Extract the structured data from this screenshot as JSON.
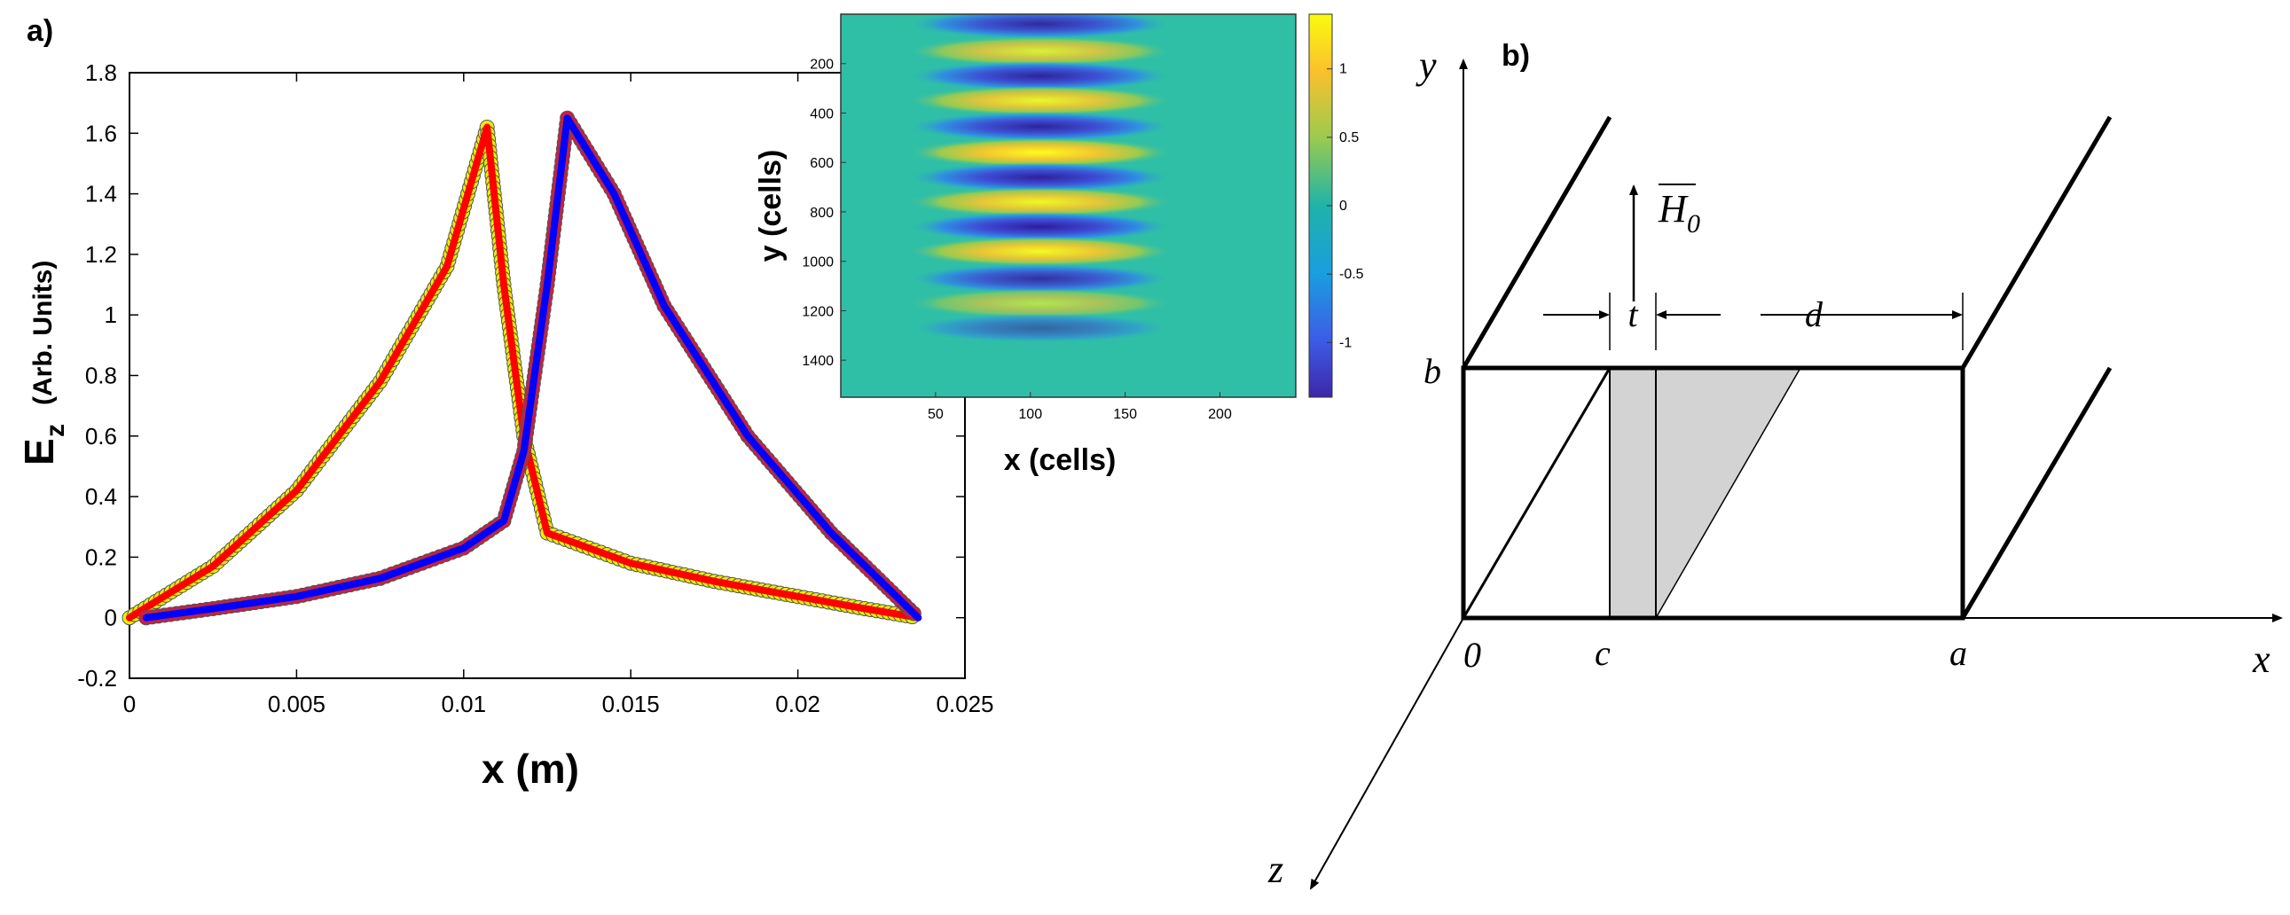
{
  "panel_labels": {
    "a": "a)",
    "b": "b)"
  },
  "chart_data": [
    {
      "type": "line",
      "title": "",
      "xlabel": "x (m)",
      "ylabel_main": "E",
      "ylabel_sub": "z",
      "ylabel_units": "(Arb. Units)",
      "xlim": [
        0,
        0.025
      ],
      "ylim": [
        -0.2,
        1.8
      ],
      "xticks": [
        0,
        0.005,
        0.01,
        0.015,
        0.02,
        0.025
      ],
      "xtick_labels": [
        "0",
        "0.005",
        "0.01",
        "0.015",
        "0.02",
        "0.025"
      ],
      "yticks": [
        -0.2,
        0,
        0.2,
        0.4,
        0.6,
        0.8,
        1,
        1.2,
        1.4,
        1.6,
        1.8
      ],
      "ytick_labels": [
        "-0.2",
        "0",
        "0.2",
        "0.4",
        "0.6",
        "0.8",
        "1",
        "1.2",
        "1.4",
        "1.6",
        "1.8"
      ],
      "grid": false,
      "series": [
        {
          "marker_color": "#e8f000",
          "line_color": "#ff0000",
          "x": [
            0,
            0.0025,
            0.005,
            0.0075,
            0.0095,
            0.0107,
            0.0112,
            0.0118,
            0.0125,
            0.015,
            0.0175,
            0.02,
            0.022,
            0.0236
          ],
          "y": [
            0,
            0.17,
            0.42,
            0.78,
            1.16,
            1.62,
            1.1,
            0.6,
            0.28,
            0.18,
            0.12,
            0.07,
            0.03,
            0
          ]
        },
        {
          "marker_color": "#d61a3c",
          "line_color": "#0000ff",
          "x": [
            0.0005,
            0.0025,
            0.005,
            0.0075,
            0.01,
            0.0112,
            0.0118,
            0.0125,
            0.0131,
            0.0145,
            0.016,
            0.0185,
            0.021,
            0.0236
          ],
          "y": [
            0,
            0.03,
            0.07,
            0.13,
            0.23,
            0.32,
            0.55,
            1.1,
            1.65,
            1.4,
            1.03,
            0.6,
            0.28,
            0
          ]
        }
      ]
    },
    {
      "type": "heatmap",
      "xlabel": "x (cells)",
      "ylabel": "y (cells)",
      "xlim": [
        0,
        240
      ],
      "ylim": [
        0,
        1550
      ],
      "xticks": [
        50,
        100,
        150,
        200
      ],
      "yticks": [
        200,
        400,
        600,
        800,
        1000,
        1200,
        1400
      ],
      "colorbar_ticks": [
        1,
        0.5,
        0,
        -0.5,
        -1
      ],
      "colorbar_range": [
        -1.4,
        1.4
      ],
      "stripe_center_x": 105,
      "stripes": [
        {
          "y": 40,
          "value": -1.2
        },
        {
          "y": 150,
          "value": 1.0
        },
        {
          "y": 250,
          "value": -1.3
        },
        {
          "y": 350,
          "value": 1.2
        },
        {
          "y": 455,
          "value": -1.3
        },
        {
          "y": 560,
          "value": 1.4
        },
        {
          "y": 660,
          "value": -1.35
        },
        {
          "y": 760,
          "value": 1.25
        },
        {
          "y": 860,
          "value": -1.4
        },
        {
          "y": 960,
          "value": 1.3
        },
        {
          "y": 1070,
          "value": -1.1
        },
        {
          "y": 1170,
          "value": 0.6
        },
        {
          "y": 1270,
          "value": -0.4
        }
      ]
    }
  ],
  "diagram": {
    "axis_x": "x",
    "axis_y": "y",
    "axis_z": "z",
    "origin": "0",
    "point_c": "c",
    "point_a": "a",
    "point_b": "b",
    "dim_t": "t",
    "dim_d": "d",
    "field": "H",
    "field_sub": "0"
  }
}
